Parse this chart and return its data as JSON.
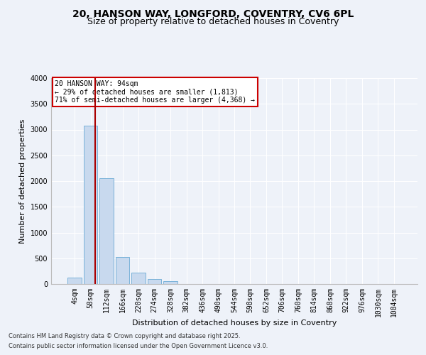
{
  "title1": "20, HANSON WAY, LONGFORD, COVENTRY, CV6 6PL",
  "title2": "Size of property relative to detached houses in Coventry",
  "xlabel": "Distribution of detached houses by size in Coventry",
  "ylabel": "Number of detached properties",
  "bar_color": "#c8d9ee",
  "bar_edge_color": "#6aaad4",
  "categories": [
    "4sqm",
    "58sqm",
    "112sqm",
    "166sqm",
    "220sqm",
    "274sqm",
    "328sqm",
    "382sqm",
    "436sqm",
    "490sqm",
    "544sqm",
    "598sqm",
    "652sqm",
    "706sqm",
    "760sqm",
    "814sqm",
    "868sqm",
    "922sqm",
    "976sqm",
    "1030sqm",
    "1084sqm"
  ],
  "values": [
    130,
    3080,
    2050,
    530,
    220,
    100,
    60,
    0,
    0,
    0,
    0,
    0,
    0,
    0,
    0,
    0,
    0,
    0,
    0,
    0,
    0
  ],
  "ylim": [
    0,
    4000
  ],
  "yticks": [
    0,
    500,
    1000,
    1500,
    2000,
    2500,
    3000,
    3500,
    4000
  ],
  "property_line_x": 1.3,
  "annotation_text": "20 HANSON WAY: 94sqm\n← 29% of detached houses are smaller (1,813)\n71% of semi-detached houses are larger (4,368) →",
  "annotation_box_color": "#ffffff",
  "annotation_box_edge": "#cc0000",
  "line_color": "#aa0000",
  "footnote1": "Contains HM Land Registry data © Crown copyright and database right 2025.",
  "footnote2": "Contains public sector information licensed under the Open Government Licence v3.0.",
  "bg_color": "#eef2f9",
  "grid_color": "#ffffff",
  "title_fontsize": 10,
  "subtitle_fontsize": 9,
  "label_fontsize": 8,
  "tick_fontsize": 7,
  "footnote_fontsize": 6
}
